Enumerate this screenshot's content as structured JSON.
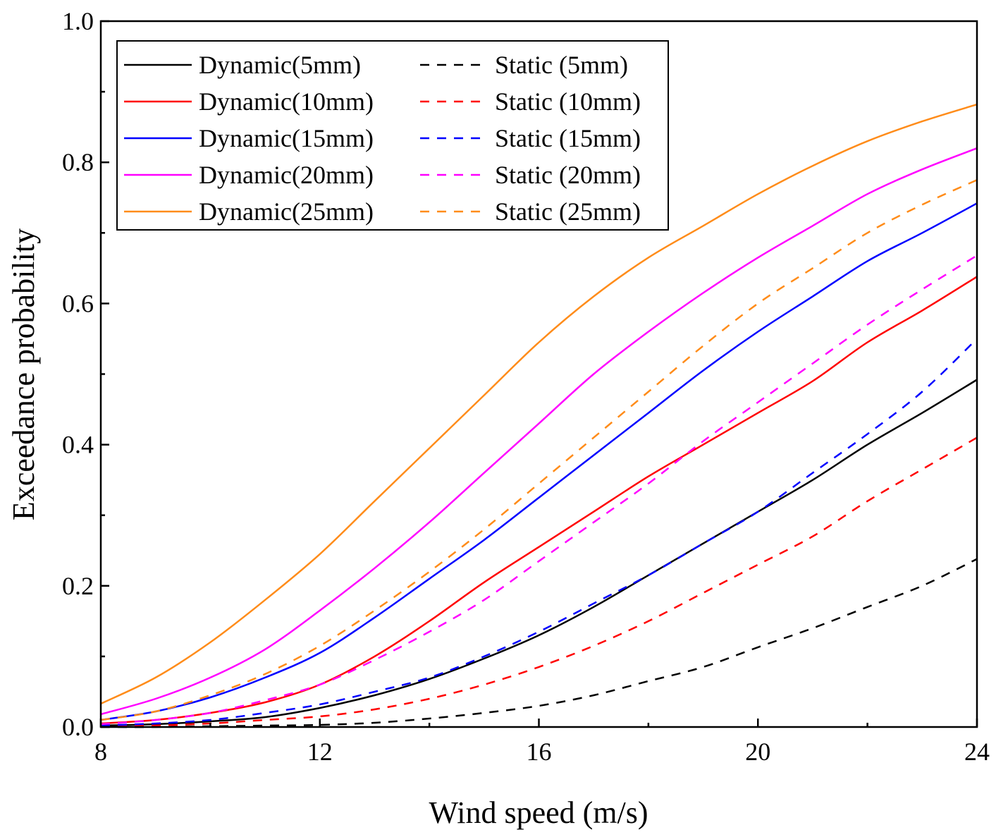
{
  "chart_data": {
    "type": "line",
    "title": "",
    "xlabel": "Wind speed (m/s)",
    "ylabel": "Exceedance probability",
    "xlim": [
      8,
      24
    ],
    "ylim": [
      0.0,
      1.0
    ],
    "xticks": [
      8,
      12,
      16,
      20,
      24
    ],
    "xtick_labels": [
      "8",
      "12",
      "16",
      "20",
      "24"
    ],
    "yticks": [
      0.0,
      0.2,
      0.4,
      0.6,
      0.8,
      1.0
    ],
    "ytick_labels": [
      "0.0",
      "0.2",
      "0.4",
      "0.6",
      "0.8",
      "1.0"
    ],
    "grid": false,
    "legend_position": "top-left",
    "x": [
      8,
      9,
      10,
      11,
      12,
      13,
      14,
      15,
      16,
      17,
      18,
      19,
      20,
      21,
      22,
      23,
      24
    ],
    "series": [
      {
        "name": "Dynamic(5mm)",
        "color": "#000000",
        "style": "solid",
        "values": [
          0.002,
          0.004,
          0.008,
          0.014,
          0.027,
          0.045,
          0.068,
          0.097,
          0.13,
          0.17,
          0.215,
          0.26,
          0.305,
          0.35,
          0.4,
          0.445,
          0.492
        ]
      },
      {
        "name": "Static (5mm)",
        "color": "#000000",
        "style": "dashed",
        "values": [
          0.0,
          0.0,
          0.001,
          0.002,
          0.003,
          0.006,
          0.012,
          0.02,
          0.03,
          0.045,
          0.065,
          0.085,
          0.113,
          0.14,
          0.17,
          0.2,
          0.238
        ]
      },
      {
        "name": "Dynamic(10mm)",
        "color": "#ff0000",
        "style": "solid",
        "values": [
          0.005,
          0.01,
          0.02,
          0.035,
          0.06,
          0.1,
          0.15,
          0.205,
          0.255,
          0.305,
          0.355,
          0.4,
          0.445,
          0.49,
          0.545,
          0.59,
          0.638
        ]
      },
      {
        "name": "Static (10mm)",
        "color": "#ff0000",
        "style": "dashed",
        "values": [
          0.001,
          0.002,
          0.005,
          0.01,
          0.015,
          0.025,
          0.04,
          0.06,
          0.085,
          0.115,
          0.15,
          0.19,
          0.23,
          0.27,
          0.32,
          0.365,
          0.41
        ]
      },
      {
        "name": "Dynamic(15mm)",
        "color": "#0000ff",
        "style": "solid",
        "values": [
          0.01,
          0.022,
          0.042,
          0.07,
          0.105,
          0.155,
          0.21,
          0.265,
          0.325,
          0.385,
          0.445,
          0.505,
          0.56,
          0.61,
          0.66,
          0.7,
          0.742
        ]
      },
      {
        "name": "Static (15mm)",
        "color": "#0000ff",
        "style": "dashed",
        "values": [
          0.002,
          0.005,
          0.01,
          0.02,
          0.032,
          0.05,
          0.07,
          0.1,
          0.135,
          0.175,
          0.215,
          0.26,
          0.305,
          0.36,
          0.415,
          0.475,
          0.55
        ]
      },
      {
        "name": "Dynamic(20mm)",
        "color": "#ff00ff",
        "style": "solid",
        "values": [
          0.018,
          0.04,
          0.07,
          0.11,
          0.165,
          0.225,
          0.29,
          0.36,
          0.43,
          0.5,
          0.56,
          0.615,
          0.665,
          0.71,
          0.755,
          0.79,
          0.82
        ]
      },
      {
        "name": "Static (20mm)",
        "color": "#ff00ff",
        "style": "dashed",
        "values": [
          0.004,
          0.01,
          0.02,
          0.038,
          0.06,
          0.095,
          0.135,
          0.18,
          0.235,
          0.29,
          0.345,
          0.405,
          0.46,
          0.515,
          0.57,
          0.62,
          0.668
        ]
      },
      {
        "name": "Dynamic(25mm)",
        "color": "#ff8c1a",
        "style": "solid",
        "values": [
          0.033,
          0.07,
          0.12,
          0.18,
          0.245,
          0.32,
          0.395,
          0.47,
          0.545,
          0.61,
          0.665,
          0.71,
          0.755,
          0.795,
          0.83,
          0.858,
          0.882
        ]
      },
      {
        "name": "Static (25mm)",
        "color": "#ff8c1a",
        "style": "dashed",
        "values": [
          0.01,
          0.022,
          0.045,
          0.075,
          0.115,
          0.165,
          0.22,
          0.28,
          0.345,
          0.41,
          0.475,
          0.54,
          0.6,
          0.65,
          0.7,
          0.74,
          0.775
        ]
      }
    ]
  }
}
